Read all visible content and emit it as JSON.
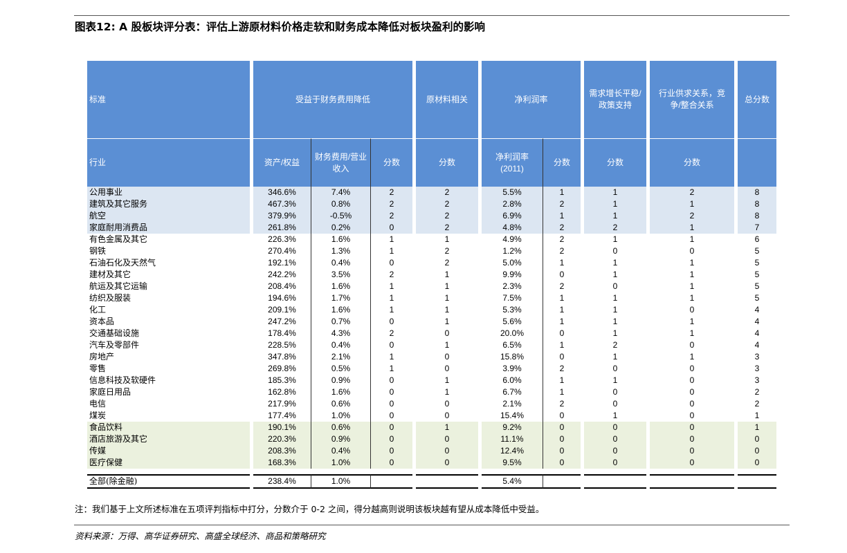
{
  "title": "图表12: A 股板块评分表：评估上游原材料价格走软和财务成本降低对板块盈利的影响",
  "header": {
    "row1": {
      "criteria": "标准",
      "finance": "受益于财务费用降低",
      "raw": "原材料相关",
      "margin": "净利润率",
      "demand": "需求增长平稳/政策支持",
      "supply": "行业供求关系，竞争/整合关系",
      "total": "总分数"
    },
    "row2": {
      "industry": "行业",
      "asset_equity": "资产/权益",
      "fin_ratio": "财务费用/营业收入",
      "score1": "分数",
      "score2": "分数",
      "margin_2011": "净利润率(2011)",
      "score3": "分数",
      "score4": "分数",
      "score5": "分数"
    }
  },
  "rows": [
    {
      "name": "公用事业",
      "ae": "346.6%",
      "fr": "7.4%",
      "s1": "2",
      "s2": "2",
      "nm": "5.5%",
      "s3": "1",
      "s4": "1",
      "s5": "2",
      "tot": "8",
      "group": "blue"
    },
    {
      "name": "建筑及其它服务",
      "ae": "467.3%",
      "fr": "0.8%",
      "s1": "2",
      "s2": "2",
      "nm": "2.8%",
      "s3": "2",
      "s4": "1",
      "s5": "1",
      "tot": "8",
      "group": "blue"
    },
    {
      "name": "航空",
      "ae": "379.9%",
      "fr": "-0.5%",
      "s1": "2",
      "s2": "2",
      "nm": "6.9%",
      "s3": "1",
      "s4": "1",
      "s5": "2",
      "tot": "8",
      "group": "blue"
    },
    {
      "name": "家庭耐用消费品",
      "ae": "261.8%",
      "fr": "0.2%",
      "s1": "0",
      "s2": "2",
      "nm": "4.8%",
      "s3": "2",
      "s4": "2",
      "s5": "1",
      "tot": "7",
      "group": "blue"
    },
    {
      "name": "有色金属及其它",
      "ae": "226.3%",
      "fr": "1.6%",
      "s1": "1",
      "s2": "1",
      "nm": "4.9%",
      "s3": "2",
      "s4": "1",
      "s5": "1",
      "tot": "6",
      "group": "none"
    },
    {
      "name": "钢铁",
      "ae": "270.4%",
      "fr": "1.3%",
      "s1": "1",
      "s2": "2",
      "nm": "1.2%",
      "s3": "2",
      "s4": "0",
      "s5": "0",
      "tot": "5",
      "group": "none"
    },
    {
      "name": "石油石化及天然气",
      "ae": "192.1%",
      "fr": "0.4%",
      "s1": "0",
      "s2": "2",
      "nm": "5.0%",
      "s3": "1",
      "s4": "1",
      "s5": "1",
      "tot": "5",
      "group": "none"
    },
    {
      "name": "建材及其它",
      "ae": "242.2%",
      "fr": "3.5%",
      "s1": "2",
      "s2": "1",
      "nm": "9.9%",
      "s3": "0",
      "s4": "1",
      "s5": "1",
      "tot": "5",
      "group": "none"
    },
    {
      "name": "航运及其它运输",
      "ae": "208.4%",
      "fr": "1.6%",
      "s1": "1",
      "s2": "1",
      "nm": "2.3%",
      "s3": "2",
      "s4": "0",
      "s5": "1",
      "tot": "5",
      "group": "none"
    },
    {
      "name": "纺织及服装",
      "ae": "194.6%",
      "fr": "1.7%",
      "s1": "1",
      "s2": "1",
      "nm": "7.5%",
      "s3": "1",
      "s4": "1",
      "s5": "1",
      "tot": "5",
      "group": "none"
    },
    {
      "name": "化工",
      "ae": "209.1%",
      "fr": "1.6%",
      "s1": "1",
      "s2": "1",
      "nm": "5.3%",
      "s3": "1",
      "s4": "1",
      "s5": "0",
      "tot": "4",
      "group": "none"
    },
    {
      "name": "资本品",
      "ae": "247.2%",
      "fr": "0.7%",
      "s1": "0",
      "s2": "1",
      "nm": "5.6%",
      "s3": "1",
      "s4": "1",
      "s5": "1",
      "tot": "4",
      "group": "none"
    },
    {
      "name": "交通基础设施",
      "ae": "178.4%",
      "fr": "4.3%",
      "s1": "2",
      "s2": "0",
      "nm": "20.0%",
      "s3": "0",
      "s4": "1",
      "s5": "1",
      "tot": "4",
      "group": "none"
    },
    {
      "name": "汽车及零部件",
      "ae": "228.5%",
      "fr": "0.4%",
      "s1": "0",
      "s2": "1",
      "nm": "6.5%",
      "s3": "1",
      "s4": "2",
      "s5": "0",
      "tot": "4",
      "group": "none"
    },
    {
      "name": "房地产",
      "ae": "347.8%",
      "fr": "2.1%",
      "s1": "1",
      "s2": "0",
      "nm": "15.8%",
      "s3": "0",
      "s4": "1",
      "s5": "1",
      "tot": "3",
      "group": "none"
    },
    {
      "name": "零售",
      "ae": "269.8%",
      "fr": "0.5%",
      "s1": "1",
      "s2": "0",
      "nm": "3.9%",
      "s3": "2",
      "s4": "0",
      "s5": "0",
      "tot": "3",
      "group": "none"
    },
    {
      "name": "信息科技及软硬件",
      "ae": "185.3%",
      "fr": "0.9%",
      "s1": "0",
      "s2": "1",
      "nm": "6.0%",
      "s3": "1",
      "s4": "1",
      "s5": "0",
      "tot": "3",
      "group": "none"
    },
    {
      "name": "家庭日用品",
      "ae": "162.8%",
      "fr": "1.6%",
      "s1": "0",
      "s2": "1",
      "nm": "6.7%",
      "s3": "1",
      "s4": "0",
      "s5": "0",
      "tot": "2",
      "group": "none"
    },
    {
      "name": "电信",
      "ae": "217.9%",
      "fr": "0.6%",
      "s1": "0",
      "s2": "0",
      "nm": "2.1%",
      "s3": "2",
      "s4": "0",
      "s5": "0",
      "tot": "2",
      "group": "none"
    },
    {
      "name": "煤炭",
      "ae": "177.4%",
      "fr": "1.0%",
      "s1": "0",
      "s2": "0",
      "nm": "15.4%",
      "s3": "0",
      "s4": "1",
      "s5": "0",
      "tot": "1",
      "group": "none"
    },
    {
      "name": "食品饮料",
      "ae": "190.1%",
      "fr": "0.6%",
      "s1": "0",
      "s2": "1",
      "nm": "9.2%",
      "s3": "0",
      "s4": "0",
      "s5": "0",
      "tot": "1",
      "group": "green"
    },
    {
      "name": "酒店旅游及其它",
      "ae": "220.3%",
      "fr": "0.9%",
      "s1": "0",
      "s2": "0",
      "nm": "11.1%",
      "s3": "0",
      "s4": "0",
      "s5": "0",
      "tot": "0",
      "group": "green"
    },
    {
      "name": "传媒",
      "ae": "208.3%",
      "fr": "0.4%",
      "s1": "0",
      "s2": "0",
      "nm": "12.4%",
      "s3": "0",
      "s4": "0",
      "s5": "0",
      "tot": "0",
      "group": "green"
    },
    {
      "name": "医疗保健",
      "ae": "168.3%",
      "fr": "1.0%",
      "s1": "0",
      "s2": "0",
      "nm": "9.5%",
      "s3": "0",
      "s4": "0",
      "s5": "0",
      "tot": "0",
      "group": "green"
    }
  ],
  "total_row": {
    "name": "全部(除金融)",
    "ae": "238.4%",
    "fr": "1.0%",
    "s1": "",
    "s2": "",
    "nm": "5.4%",
    "s3": "",
    "s4": "",
    "s5": "",
    "tot": ""
  },
  "note": "注：我们基于上文所述标准在五项评判指标中打分，分数介于 0-2 之间，得分越高则说明该板块越有望从成本降低中受益。",
  "source": "资料来源：万得、高华证券研究、高盛全球经济、商品和策略研究",
  "colors": {
    "header_blue": "#5b8fd4",
    "row_blue": "#dce6f2",
    "row_green": "#ebf1de"
  }
}
